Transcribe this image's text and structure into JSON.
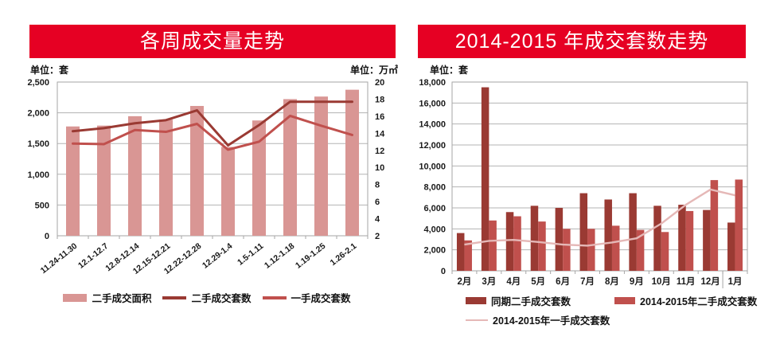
{
  "colors": {
    "banner_red": "#e60023",
    "bar_pink": "#d99694",
    "dark_red": "#9a3a33",
    "red": "#c0504d",
    "pink_line": "#e5b8b7",
    "grid": "#b3b3b3",
    "plot_border": "#a6a6a6",
    "axis_text": "#1a1a1a"
  },
  "chart_data": [
    {
      "type": "bar+line combo",
      "title": "各周成交量走势",
      "categories": [
        "11.24-11.30",
        "12.1-12.7",
        "12.8-12.14",
        "12.15-12.21",
        "12.22-12.28",
        "12.29-1.4",
        "1.5-1.11",
        "1.12-1.18",
        "1.19-1.25",
        "1.26-2.1"
      ],
      "series": [
        {
          "name": "二手成交面积",
          "type": "bar",
          "axis": "right",
          "unit": "万㎡",
          "color_key": "bar_pink",
          "values": [
            14.8,
            14.9,
            16.0,
            15.6,
            17.2,
            12.4,
            15.5,
            18.0,
            18.3,
            19.1
          ]
        },
        {
          "name": "二手成交套数",
          "type": "line",
          "axis": "left",
          "unit": "套",
          "color_key": "dark_red",
          "values": [
            1700,
            1750,
            1830,
            1880,
            2040,
            1470,
            1800,
            2180,
            2180,
            2180
          ]
        },
        {
          "name": "一手成交套数",
          "type": "line",
          "axis": "left",
          "unit": "套",
          "color_key": "red",
          "values": [
            1500,
            1490,
            1720,
            1690,
            1820,
            1400,
            1530,
            1950,
            1790,
            1640
          ]
        }
      ],
      "left_axis": {
        "label": "单位：套",
        "min": 0,
        "max": 2500,
        "step": 500,
        "ticks": [
          "2,500",
          "2,000",
          "1,500",
          "1,000",
          "500",
          "0"
        ]
      },
      "right_axis": {
        "label": "单位：万㎡",
        "min": 2,
        "max": 20,
        "step": 2,
        "ticks": [
          "20",
          "18",
          "16",
          "14",
          "12",
          "10",
          "8",
          "6",
          "4",
          "2"
        ]
      },
      "grid": true,
      "legend_position": "bottom"
    },
    {
      "type": "bar+line combo",
      "title": "2014-2015 年成交套数走势",
      "categories": [
        "2月",
        "3月",
        "4月",
        "5月",
        "6月",
        "7月",
        "8月",
        "9月",
        "10月",
        "11月",
        "12月",
        "1月"
      ],
      "series": [
        {
          "name": "同期二手成交套数",
          "type": "bar",
          "color_key": "dark_red",
          "values": [
            3600,
            17500,
            5600,
            6200,
            6000,
            7400,
            6800,
            7400,
            6200,
            6300,
            5800,
            4600
          ]
        },
        {
          "name": "2014-2015年二手成交套数",
          "type": "bar",
          "color_key": "red",
          "values": [
            2900,
            4800,
            5200,
            4700,
            4000,
            4000,
            4300,
            3900,
            3700,
            5700,
            8650,
            8700
          ]
        },
        {
          "name": "2014-2015年一手成交套数",
          "type": "line",
          "color_key": "pink_line",
          "values": [
            2500,
            2850,
            2950,
            2750,
            2500,
            2400,
            2700,
            3100,
            4500,
            6300,
            7750,
            7200
          ]
        }
      ],
      "y_axis": {
        "label": "单位：套",
        "min": 0,
        "max": 18000,
        "step": 2000,
        "ticks": [
          "18,000",
          "16,000",
          "14,000",
          "12,000",
          "10,000",
          "8,000",
          "6,000",
          "4,000",
          "2,000",
          "0"
        ]
      },
      "grid": true,
      "year_separator_after_index": 10,
      "legend_position": "bottom"
    }
  ]
}
